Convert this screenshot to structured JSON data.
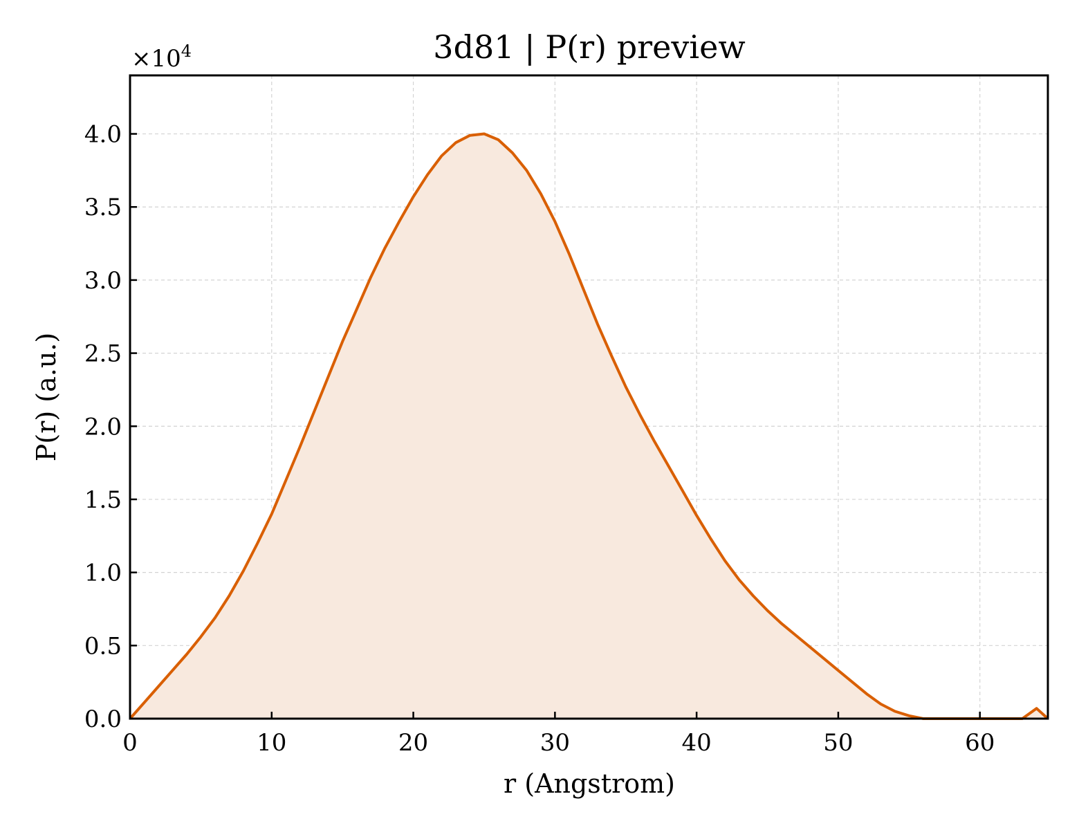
{
  "chart_data": {
    "type": "area",
    "title": "3d81 | P(r) preview",
    "xlabel": "r (Angstrom)",
    "ylabel": "P(r) (a.u.)",
    "y_multiplier": "×10",
    "y_multiplier_exponent": "4",
    "xlim": [
      0,
      64.8
    ],
    "ylim": [
      0,
      4.4
    ],
    "x_ticks": [
      0,
      10,
      20,
      30,
      40,
      50,
      60
    ],
    "x_tick_labels": [
      "0",
      "10",
      "20",
      "30",
      "40",
      "50",
      "60"
    ],
    "y_ticks": [
      0,
      0.5,
      1.0,
      1.5,
      2.0,
      2.5,
      3.0,
      3.5,
      4.0
    ],
    "y_tick_labels": [
      "0.0",
      "0.5",
      "1.0",
      "1.5",
      "2.0",
      "2.5",
      "3.0",
      "3.5",
      "4.0"
    ],
    "grid": true,
    "line_color": "#d95f02",
    "fill_color": "#f8e9de",
    "series": [
      {
        "x": [
          0,
          1,
          2,
          3,
          4,
          5,
          6,
          7,
          8,
          9,
          10,
          11,
          12,
          13,
          14,
          15,
          16,
          17,
          18,
          19,
          20,
          21,
          22,
          23,
          24,
          25,
          26,
          27,
          28,
          29,
          30,
          31,
          32,
          33,
          34,
          35,
          36,
          37,
          38,
          39,
          40,
          41,
          42,
          43,
          44,
          45,
          46,
          47,
          48,
          49,
          50,
          51,
          52,
          53,
          54,
          55,
          56,
          57,
          58,
          59,
          60,
          61,
          62,
          63,
          64,
          64.8
        ],
        "y": [
          0.0,
          0.11,
          0.22,
          0.33,
          0.44,
          0.56,
          0.69,
          0.84,
          1.01,
          1.2,
          1.4,
          1.63,
          1.86,
          2.1,
          2.34,
          2.58,
          2.8,
          3.02,
          3.22,
          3.4,
          3.57,
          3.72,
          3.85,
          3.94,
          3.99,
          4.0,
          3.96,
          3.87,
          3.75,
          3.59,
          3.4,
          3.18,
          2.94,
          2.7,
          2.48,
          2.27,
          2.08,
          1.9,
          1.73,
          1.56,
          1.39,
          1.23,
          1.08,
          0.95,
          0.84,
          0.74,
          0.65,
          0.57,
          0.49,
          0.41,
          0.33,
          0.25,
          0.17,
          0.1,
          0.05,
          0.02,
          0.0,
          0.0,
          0.0,
          0.0,
          0.0,
          0.0,
          0.0,
          0.0,
          0.07,
          0.0
        ]
      }
    ]
  }
}
